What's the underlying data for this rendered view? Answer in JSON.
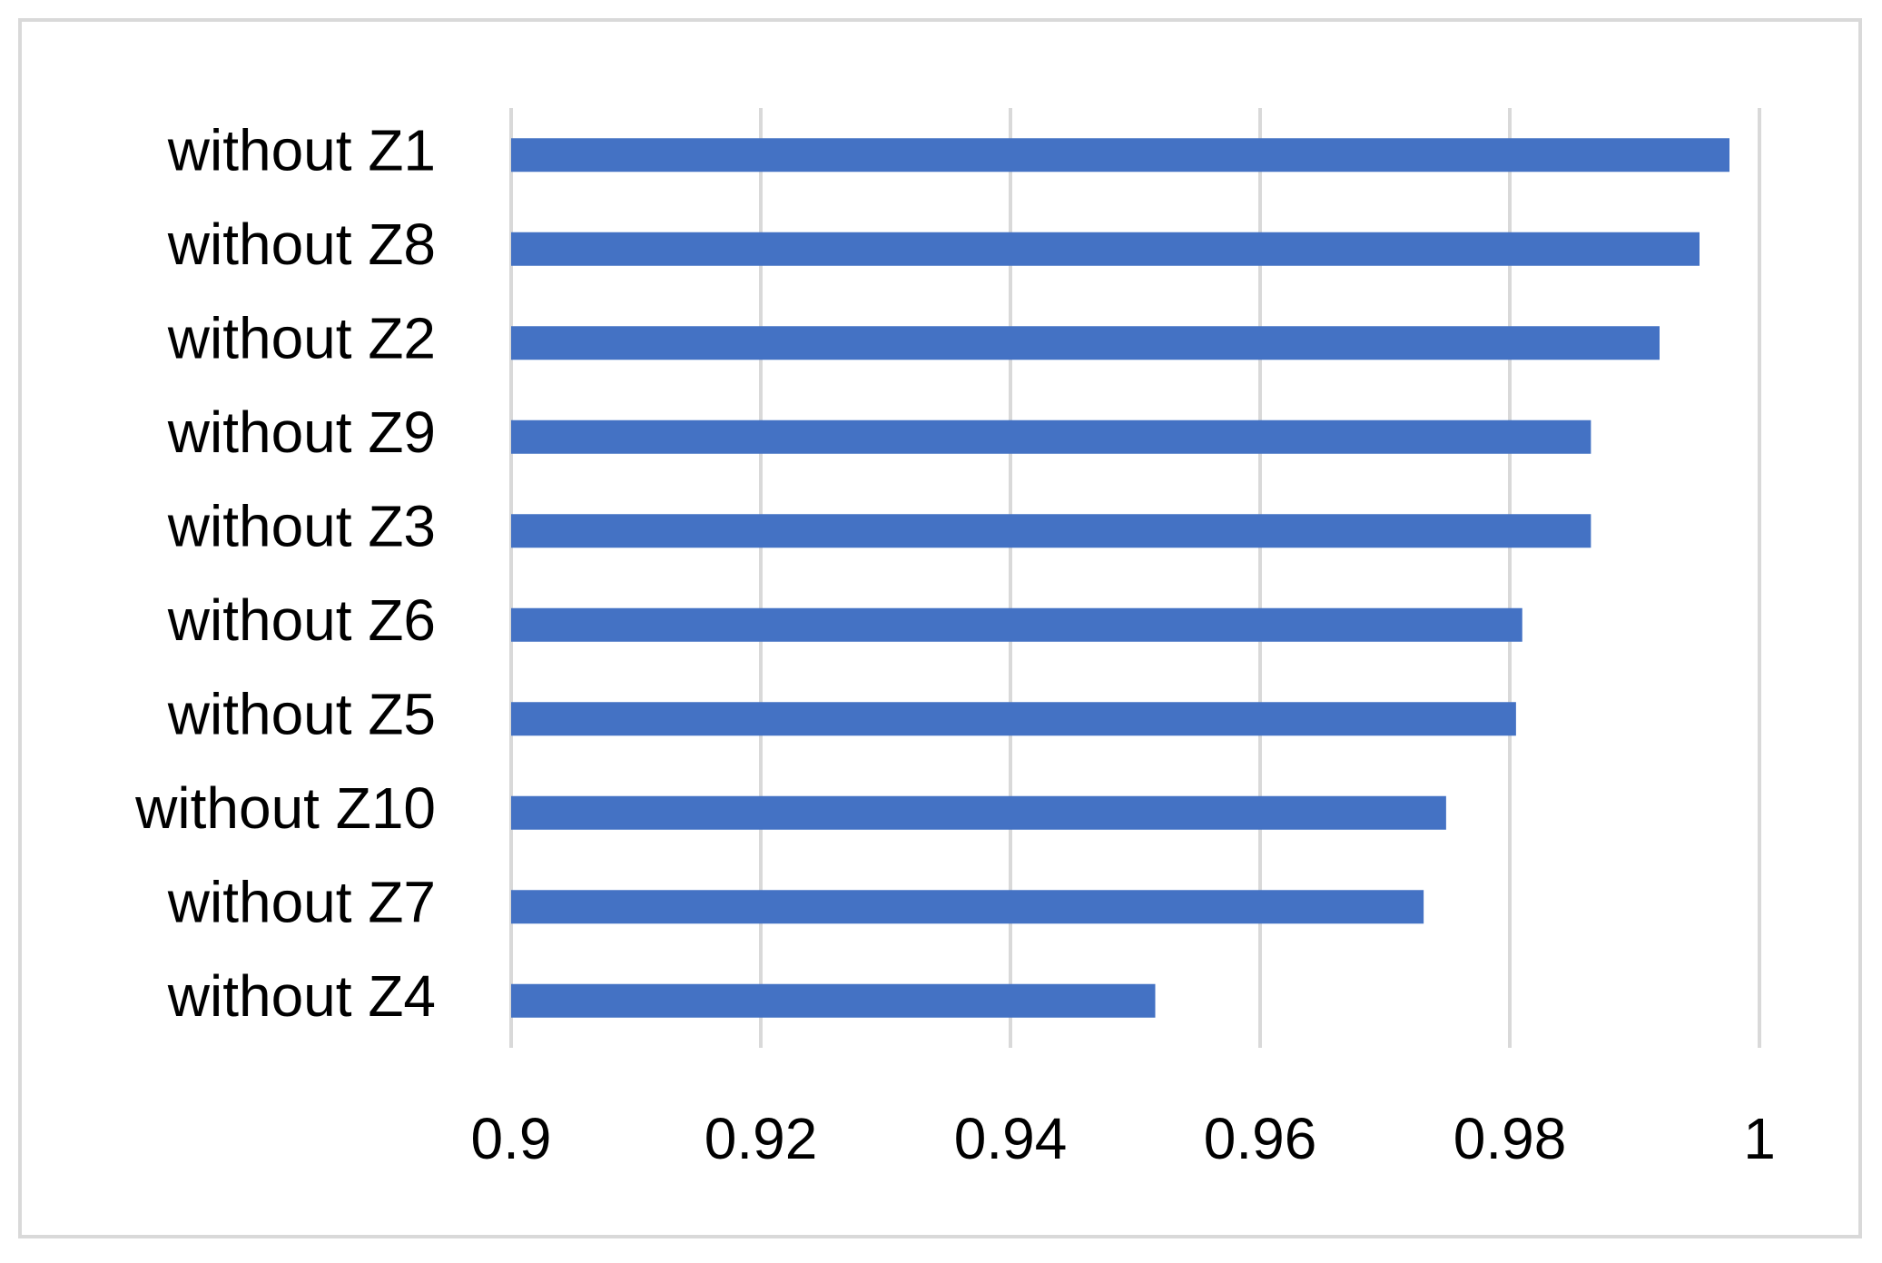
{
  "chart_data": {
    "type": "bar",
    "orientation": "horizontal",
    "categories": [
      "without Z1",
      "without Z8",
      "without Z2",
      "without Z9",
      "without Z3",
      "without Z6",
      "without Z5",
      "without Z10",
      "without Z7",
      "without Z4"
    ],
    "values": [
      0.9976,
      0.9952,
      0.992,
      0.9865,
      0.9865,
      0.981,
      0.9805,
      0.9749,
      0.9731,
      0.9516
    ],
    "color": "#4472c4",
    "xlim": [
      0.9,
      1
    ],
    "xticks": [
      0.9,
      0.92,
      0.94,
      0.96,
      0.98,
      1
    ],
    "grid": true
  }
}
